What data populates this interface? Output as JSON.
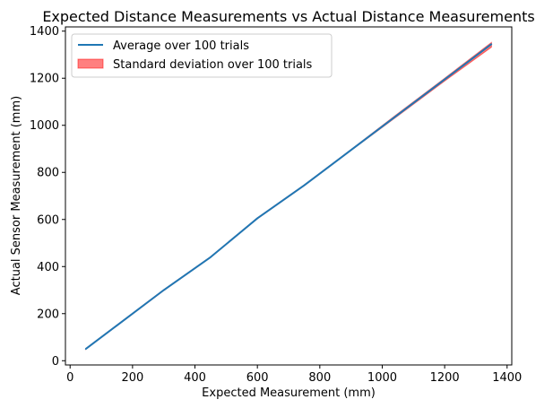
{
  "chart_data": {
    "type": "line",
    "title": "Expected Distance Measurements vs Actual Distance Measurements",
    "xlabel": "Expected Measurement (mm)",
    "ylabel": "Actual Sensor Measurement (mm)",
    "xlim": [
      -15,
      1415
    ],
    "ylim": [
      -18,
      1418
    ],
    "xticks": [
      0,
      200,
      400,
      600,
      800,
      1000,
      1200,
      1400
    ],
    "yticks": [
      0,
      200,
      400,
      600,
      800,
      1000,
      1200,
      1400
    ],
    "legend_position": "top-left",
    "grid": false,
    "series": [
      {
        "name": "Average over 100 trials",
        "kind": "line",
        "color": "#1f77b4",
        "x": [
          50,
          150,
          300,
          450,
          600,
          750,
          900,
          1050,
          1200,
          1350
        ],
        "y": [
          50,
          150,
          300,
          440,
          605,
          745,
          895,
          1045,
          1195,
          1345
        ]
      },
      {
        "name": "Standard deviation over 100 trials",
        "kind": "band",
        "color": "#ff0000",
        "opacity": 0.5,
        "x": [
          50,
          150,
          300,
          450,
          600,
          750,
          900,
          1050,
          1200,
          1350
        ],
        "lower": [
          48,
          148,
          298,
          438,
          603,
          743,
          893,
          1040,
          1188,
          1332
        ],
        "upper": [
          52,
          152,
          302,
          442,
          607,
          747,
          897,
          1050,
          1200,
          1352
        ]
      }
    ]
  }
}
